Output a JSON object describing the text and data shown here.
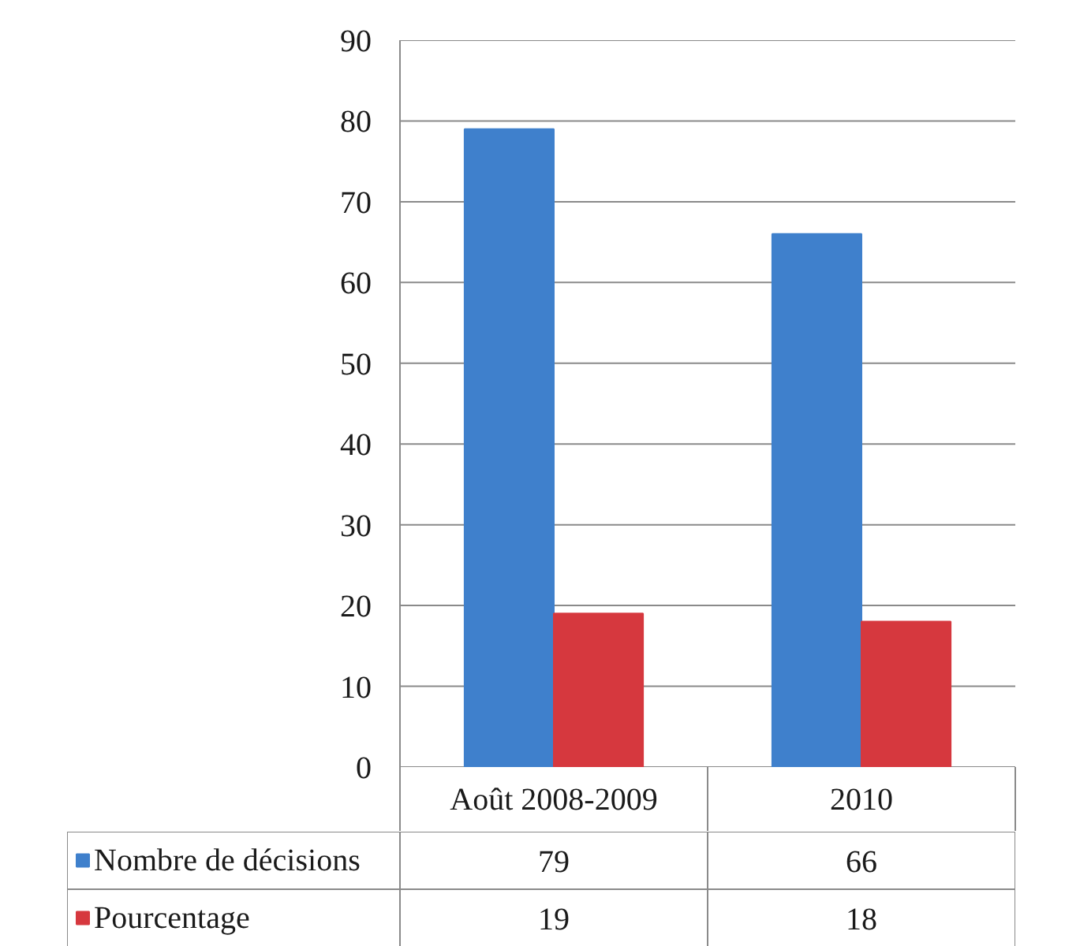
{
  "chart_data": {
    "type": "bar",
    "categories": [
      "Août 2008-2009",
      "2010"
    ],
    "series": [
      {
        "name": "Nombre de décisions",
        "color": "#3f80cc",
        "values": [
          79,
          66
        ]
      },
      {
        "name": "Pourcentage",
        "color": "#d6383e",
        "values": [
          19,
          18
        ]
      }
    ],
    "ylim": [
      0,
      90
    ],
    "yticks": [
      0,
      10,
      20,
      30,
      40,
      50,
      60,
      70,
      80,
      90
    ],
    "grid": "y",
    "legend": "bottom left",
    "data_labels": true
  }
}
